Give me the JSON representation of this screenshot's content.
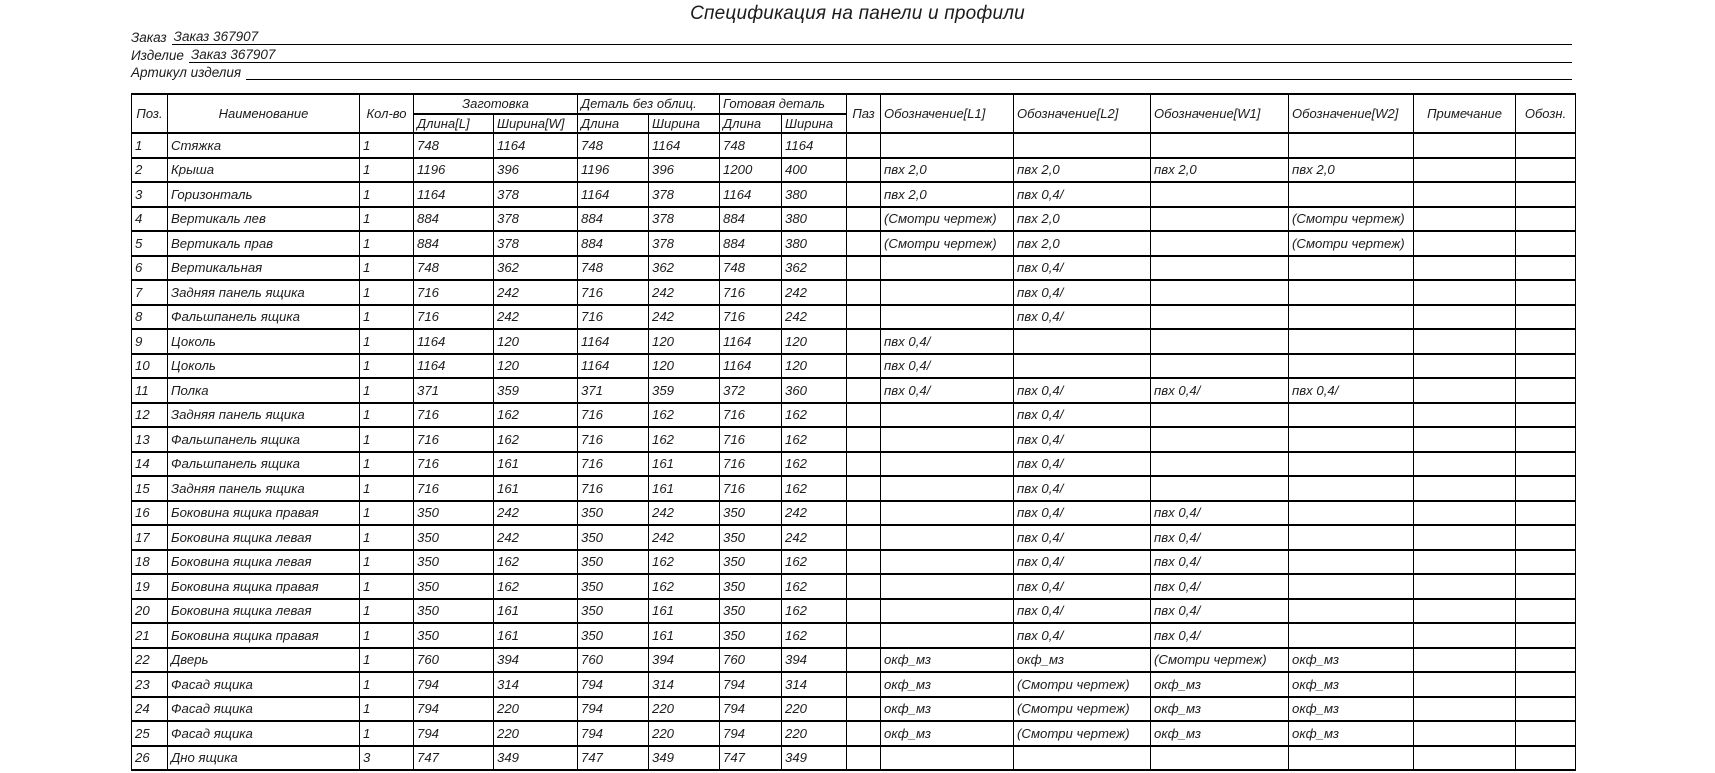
{
  "title": "Спецификация на панели и профили",
  "info": {
    "order_label": "Заказ",
    "order_value": "Заказ 367907",
    "product_label": "Изделие",
    "product_value": "Заказ 367907",
    "article_label": "Артикул изделия",
    "article_value": ""
  },
  "table": {
    "header": {
      "poz": "Поз.",
      "name": "Наименование",
      "qty": "Кол-во",
      "group_zagotovka": "Заготовка",
      "group_detail": "Деталь без облиц.",
      "group_ready": "Готовая деталь",
      "zag_len": "Длина[L]",
      "zag_wid": "Ширина[W]",
      "det_len": "Длина",
      "det_wid": "Ширина",
      "ready_len": "Длина",
      "ready_wid": "Ширина",
      "paz": "Паз",
      "l1": "Обозначение[L1]",
      "l2": "Обозначение[L2]",
      "w1": "Обозначение[W1]",
      "w2": "Обозначение[W2]",
      "note": "Примечание",
      "obozn": "Обозн."
    },
    "col_keys": [
      "poz",
      "name",
      "qty",
      "zagotovka-length",
      "zagotovka-width",
      "detail-length",
      "detail-width",
      "ready-length",
      "ready-width",
      "paz",
      "oboznachenie-l1",
      "oboznachenie-l2",
      "oboznachenie-w1",
      "oboznachenie-w2",
      "primechanie",
      "obozn"
    ],
    "rows": [
      [
        "1",
        "Стяжка",
        "1",
        "748",
        "1164",
        "748",
        "1164",
        "748",
        "1164",
        "",
        "",
        "",
        "",
        "",
        "",
        ""
      ],
      [
        "2",
        "Крыша",
        "1",
        "1196",
        "396",
        "1196",
        "396",
        "1200",
        "400",
        "",
        "пвх 2,0",
        "пвх 2,0",
        "пвх 2,0",
        "пвх 2,0",
        "",
        ""
      ],
      [
        "3",
        "Горизонталь",
        "1",
        "1164",
        "378",
        "1164",
        "378",
        "1164",
        "380",
        "",
        "пвх 2,0",
        "пвх 0,4/",
        "",
        "",
        "",
        ""
      ],
      [
        "4",
        "Вертикаль лев",
        "1",
        "884",
        "378",
        "884",
        "378",
        "884",
        "380",
        "",
        "(Смотри чертеж)",
        "пвх 2,0",
        "",
        "(Смотри чертеж)",
        "",
        ""
      ],
      [
        "5",
        "Вертикаль прав",
        "1",
        "884",
        "378",
        "884",
        "378",
        "884",
        "380",
        "",
        "(Смотри чертеж)",
        "пвх 2,0",
        "",
        "(Смотри чертеж)",
        "",
        ""
      ],
      [
        "6",
        "Вертикальная",
        "1",
        "748",
        "362",
        "748",
        "362",
        "748",
        "362",
        "",
        "",
        "пвх 0,4/",
        "",
        "",
        "",
        ""
      ],
      [
        "7",
        "Задняя панель ящика",
        "1",
        "716",
        "242",
        "716",
        "242",
        "716",
        "242",
        "",
        "",
        "пвх 0,4/",
        "",
        "",
        "",
        ""
      ],
      [
        "8",
        "Фальшпанель ящика",
        "1",
        "716",
        "242",
        "716",
        "242",
        "716",
        "242",
        "",
        "",
        "пвх 0,4/",
        "",
        "",
        "",
        ""
      ],
      [
        "9",
        "Цоколь",
        "1",
        "1164",
        "120",
        "1164",
        "120",
        "1164",
        "120",
        "",
        "пвх 0,4/",
        "",
        "",
        "",
        "",
        ""
      ],
      [
        "10",
        "Цоколь",
        "1",
        "1164",
        "120",
        "1164",
        "120",
        "1164",
        "120",
        "",
        "пвх 0,4/",
        "",
        "",
        "",
        "",
        ""
      ],
      [
        "11",
        "Полка",
        "1",
        "371",
        "359",
        "371",
        "359",
        "372",
        "360",
        "",
        "пвх 0,4/",
        "пвх 0,4/",
        "пвх 0,4/",
        "пвх 0,4/",
        "",
        ""
      ],
      [
        "12",
        "Задняя панель ящика",
        "1",
        "716",
        "162",
        "716",
        "162",
        "716",
        "162",
        "",
        "",
        "пвх 0,4/",
        "",
        "",
        "",
        ""
      ],
      [
        "13",
        "Фальшпанель ящика",
        "1",
        "716",
        "162",
        "716",
        "162",
        "716",
        "162",
        "",
        "",
        "пвх 0,4/",
        "",
        "",
        "",
        ""
      ],
      [
        "14",
        "Фальшпанель ящика",
        "1",
        "716",
        "161",
        "716",
        "161",
        "716",
        "162",
        "",
        "",
        "пвх 0,4/",
        "",
        "",
        "",
        ""
      ],
      [
        "15",
        "Задняя панель ящика",
        "1",
        "716",
        "161",
        "716",
        "161",
        "716",
        "162",
        "",
        "",
        "пвх 0,4/",
        "",
        "",
        "",
        ""
      ],
      [
        "16",
        "Боковина ящика правая",
        "1",
        "350",
        "242",
        "350",
        "242",
        "350",
        "242",
        "",
        "",
        "пвх 0,4/",
        "пвх 0,4/",
        "",
        "",
        ""
      ],
      [
        "17",
        "Боковина ящика левая",
        "1",
        "350",
        "242",
        "350",
        "242",
        "350",
        "242",
        "",
        "",
        "пвх 0,4/",
        "пвх 0,4/",
        "",
        "",
        ""
      ],
      [
        "18",
        "Боковина ящика левая",
        "1",
        "350",
        "162",
        "350",
        "162",
        "350",
        "162",
        "",
        "",
        "пвх 0,4/",
        "пвх 0,4/",
        "",
        "",
        ""
      ],
      [
        "19",
        "Боковина ящика правая",
        "1",
        "350",
        "162",
        "350",
        "162",
        "350",
        "162",
        "",
        "",
        "пвх 0,4/",
        "пвх 0,4/",
        "",
        "",
        ""
      ],
      [
        "20",
        "Боковина ящика левая",
        "1",
        "350",
        "161",
        "350",
        "161",
        "350",
        "162",
        "",
        "",
        "пвх 0,4/",
        "пвх 0,4/",
        "",
        "",
        ""
      ],
      [
        "21",
        "Боковина ящика правая",
        "1",
        "350",
        "161",
        "350",
        "161",
        "350",
        "162",
        "",
        "",
        "пвх 0,4/",
        "пвх 0,4/",
        "",
        "",
        ""
      ],
      [
        "22",
        "Дверь",
        "1",
        "760",
        "394",
        "760",
        "394",
        "760",
        "394",
        "",
        "окф_мз",
        "окф_мз",
        "(Смотри чертеж)",
        "окф_мз",
        "",
        ""
      ],
      [
        "23",
        "Фасад ящика",
        "1",
        "794",
        "314",
        "794",
        "314",
        "794",
        "314",
        "",
        "окф_мз",
        "(Смотри чертеж)",
        "окф_мз",
        "окф_мз",
        "",
        ""
      ],
      [
        "24",
        "Фасад ящика",
        "1",
        "794",
        "220",
        "794",
        "220",
        "794",
        "220",
        "",
        "окф_мз",
        "(Смотри чертеж)",
        "окф_мз",
        "окф_мз",
        "",
        ""
      ],
      [
        "25",
        "Фасад ящика",
        "1",
        "794",
        "220",
        "794",
        "220",
        "794",
        "220",
        "",
        "окф_мз",
        "(Смотри чертеж)",
        "окф_мз",
        "окф_мз",
        "",
        ""
      ],
      [
        "26",
        "Дно ящика",
        "3",
        "747",
        "349",
        "747",
        "349",
        "747",
        "349",
        "",
        "",
        "",
        "",
        "",
        "",
        ""
      ]
    ]
  },
  "colors": {
    "text": "#1c1c1c",
    "border": "#000000",
    "background": "#ffffff"
  }
}
